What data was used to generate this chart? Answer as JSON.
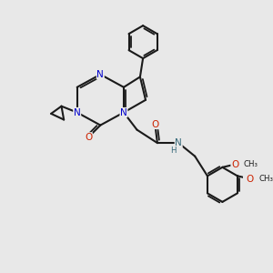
{
  "bg_color": "#e8e8e8",
  "bond_color": "#1a1a1a",
  "N_color": "#0000cc",
  "O_color": "#cc2200",
  "NH_color": "#336677",
  "lw": 1.5,
  "lw2": 1.3,
  "fs": 7.5,
  "fs_small": 6.2,
  "doff": 0.085,
  "xlim": [
    0,
    10
  ],
  "ylim": [
    0,
    10
  ]
}
